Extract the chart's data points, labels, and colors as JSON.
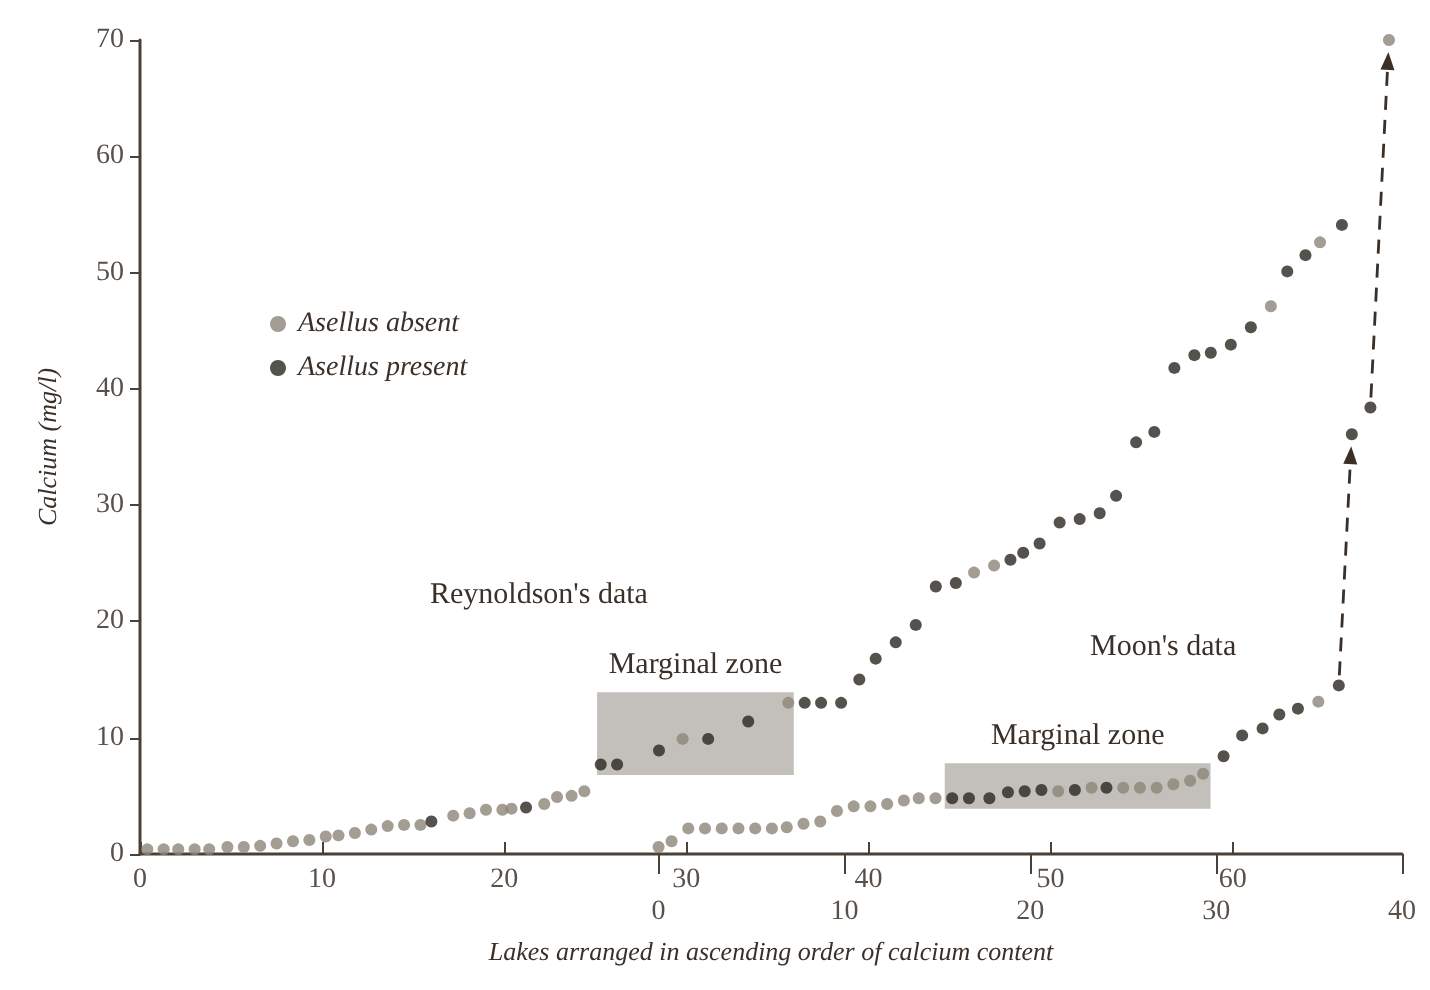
{
  "chart_data": {
    "type": "scatter",
    "xlabel": "Lakes arranged in ascending order of calcium content",
    "ylabel": "Calcium (mg/l)",
    "xlim": [
      0,
      69.3
    ],
    "xticks": [
      0,
      10,
      20,
      30,
      40,
      50,
      60
    ],
    "x2lim": [
      -27.9,
      40
    ],
    "x2ticks": [
      0,
      10,
      20,
      30,
      40
    ],
    "ylim": [
      0,
      70
    ],
    "yticks": [
      0,
      10,
      20,
      30,
      40,
      50,
      60,
      70
    ],
    "grid": false,
    "legend": "top left",
    "marker": "circle",
    "series": [
      {
        "name": "Asellus absent",
        "color": "#8c8478",
        "x": [
          0.4,
          1.3,
          2.1,
          3.0,
          3.8,
          4.8,
          5.7,
          6.6,
          7.5,
          8.4,
          9.3,
          10.2,
          10.9,
          11.8,
          12.7,
          13.6,
          14.5,
          15.4,
          17.2,
          18.1,
          19.0,
          19.9,
          20.4,
          22.2,
          22.9,
          23.7,
          24.4,
          29.8,
          35.6,
          45.8,
          46.9,
          62.1,
          64.8
        ],
        "values": [
          0.4,
          0.4,
          0.4,
          0.4,
          0.4,
          0.6,
          0.6,
          0.7,
          0.9,
          1.1,
          1.2,
          1.5,
          1.6,
          1.8,
          2.1,
          2.4,
          2.5,
          2.5,
          3.3,
          3.5,
          3.8,
          3.8,
          3.9,
          4.3,
          4.9,
          5.0,
          5.4,
          9.9,
          13.0,
          24.2,
          24.8,
          47.1,
          52.6
        ]
      },
      {
        "name": "Asellus present",
        "color": "#2b2520",
        "x": [
          16.0,
          21.2,
          25.3,
          26.2,
          28.5,
          31.2,
          33.4,
          36.5,
          37.4,
          38.5,
          39.5,
          40.4,
          41.5,
          42.6,
          43.7,
          44.8,
          47.8,
          48.5,
          49.4,
          50.5,
          51.6,
          52.7,
          53.6,
          54.7,
          55.7,
          56.8,
          57.9,
          58.8,
          59.9,
          61.0,
          63.0,
          64.0,
          66.0
        ],
        "values": [
          2.8,
          4.0,
          7.7,
          7.7,
          8.9,
          9.9,
          11.4,
          13.0,
          13.0,
          13.0,
          15.0,
          16.8,
          18.2,
          19.7,
          23.0,
          23.3,
          25.3,
          25.9,
          26.7,
          28.5,
          28.8,
          29.3,
          30.8,
          35.4,
          36.3,
          41.8,
          42.9,
          43.1,
          43.8,
          45.3,
          50.1,
          51.5,
          54.1
        ]
      },
      {
        "color": "#8c8478",
        "axis": "x2",
        "x": [
          0,
          0.7,
          1.6,
          2.5,
          3.4,
          4.3,
          5.2,
          6.1,
          6.9,
          7.8,
          8.7,
          9.6,
          10.5,
          11.4,
          12.3,
          13.2,
          14.0,
          14.9,
          21.5,
          23.3,
          25.0,
          25.9,
          26.8,
          27.7,
          28.6,
          29.3,
          35.5,
          39.3
        ],
        "values": [
          0.6,
          1.1,
          2.2,
          2.2,
          2.2,
          2.2,
          2.2,
          2.2,
          2.3,
          2.6,
          2.8,
          3.7,
          4.1,
          4.1,
          4.3,
          4.6,
          4.8,
          4.8,
          5.4,
          5.7,
          5.7,
          5.7,
          5.7,
          6.0,
          6.3,
          6.9,
          13.1,
          70
        ]
      },
      {
        "color": "#2b2520",
        "axis": "x2",
        "x": [
          15.8,
          16.7,
          17.8,
          18.8,
          19.7,
          20.6,
          22.4,
          24.1,
          30.4,
          31.4,
          32.5,
          33.4,
          34.4,
          36.6,
          37.3,
          38.3
        ],
        "values": [
          4.8,
          4.8,
          4.8,
          5.3,
          5.4,
          5.5,
          5.5,
          5.7,
          8.4,
          10.2,
          10.8,
          12.0,
          12.5,
          14.5,
          36.1,
          38.4
        ]
      }
    ],
    "bands": [
      {
        "axis": "x",
        "from": 25.1,
        "to": 35.9,
        "label": "Marginal zone",
        "color": "#7a736b"
      },
      {
        "axis": "x2",
        "from": 15.4,
        "to": 29.7,
        "label": "Marginal zone",
        "color": "#7a736b"
      }
    ],
    "annotations": [
      "Reynoldson's data",
      "Moon's data"
    ]
  }
}
